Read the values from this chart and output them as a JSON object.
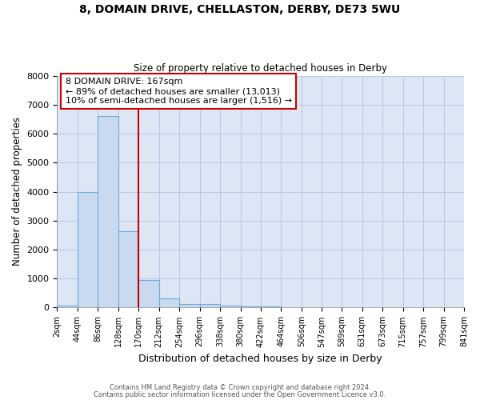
{
  "title1": "8, DOMAIN DRIVE, CHELLASTON, DERBY, DE73 5WU",
  "title2": "Size of property relative to detached houses in Derby",
  "xlabel": "Distribution of detached houses by size in Derby",
  "ylabel": "Number of detached properties",
  "bin_edges": [
    2,
    44,
    86,
    128,
    170,
    212,
    254,
    296,
    338,
    380,
    422,
    464,
    506,
    547,
    589,
    631,
    673,
    715,
    757,
    799,
    841
  ],
  "bin_counts": [
    80,
    4000,
    6600,
    2630,
    960,
    310,
    130,
    110,
    80,
    50,
    50,
    0,
    0,
    0,
    0,
    0,
    0,
    0,
    0,
    0
  ],
  "bar_color": "#c9daf0",
  "bar_edge_color": "#6fa8dc",
  "vline_x": 170,
  "vline_color": "#cc0000",
  "ylim": [
    0,
    8000
  ],
  "annotation_text": "8 DOMAIN DRIVE: 167sqm\n← 89% of detached houses are smaller (13,013)\n10% of semi-detached houses are larger (1,516) →",
  "annotation_box_color": "#ffffff",
  "annotation_box_edge_color": "#cc0000",
  "annotation_fontsize": 8.0,
  "footnote1": "Contains HM Land Registry data © Crown copyright and database right 2024.",
  "footnote2": "Contains public sector information licensed under the Open Government Licence v3.0.",
  "plot_bg_color": "#dce6f5",
  "fig_bg_color": "#ffffff",
  "grid_color": "#b8c8e0"
}
